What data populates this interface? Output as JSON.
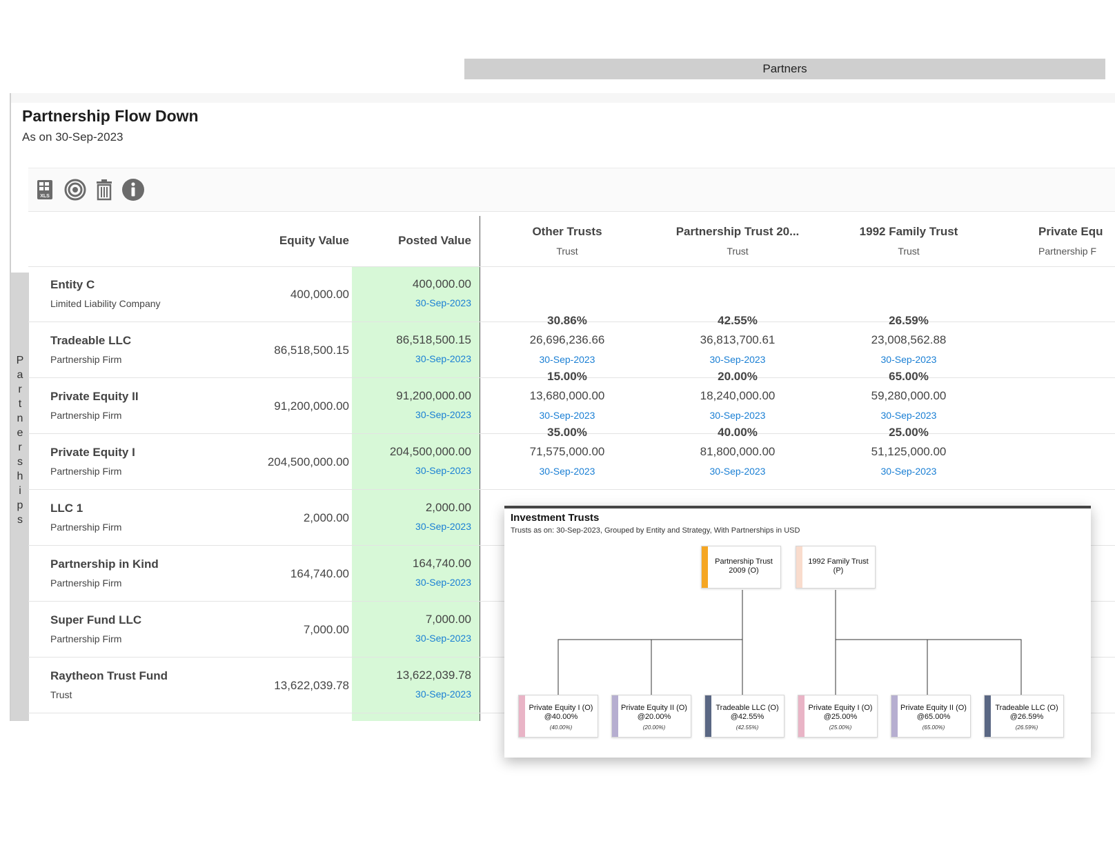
{
  "page": {
    "title": "Partnership Flow Down",
    "subtitle": "As on 30-Sep-2023",
    "partners_band": "Partners",
    "side_label": "Partnerships"
  },
  "toolbar": {
    "icons": [
      "excel-export-icon",
      "target-icon",
      "trash-icon",
      "info-icon"
    ]
  },
  "columns": {
    "equity": "Equity Value",
    "posted": "Posted Value"
  },
  "partners": [
    {
      "name": "Other Trusts",
      "type": "Trust"
    },
    {
      "name": "Partnership Trust 20...",
      "type": "Trust"
    },
    {
      "name": "1992 Family Trust",
      "type": "Trust"
    },
    {
      "name": "Private Equ",
      "type": "Partnership F"
    }
  ],
  "rows": [
    {
      "name": "Entity C",
      "type": "Limited Liability Company",
      "equity": "400,000.00",
      "posted": "400,000.00",
      "posted_date": "30-Sep-2023",
      "allocations": []
    },
    {
      "name": "Tradeable LLC",
      "type": "Partnership Firm",
      "equity": "86,518,500.15",
      "posted": "86,518,500.15",
      "posted_date": "30-Sep-2023",
      "allocations": [
        {
          "pct": "30.86%",
          "amount": "26,696,236.66",
          "date": "30-Sep-2023"
        },
        {
          "pct": "42.55%",
          "amount": "36,813,700.61",
          "date": "30-Sep-2023"
        },
        {
          "pct": "26.59%",
          "amount": "23,008,562.88",
          "date": "30-Sep-2023"
        }
      ]
    },
    {
      "name": "Private Equity II",
      "type": "Partnership Firm",
      "equity": "91,200,000.00",
      "posted": "91,200,000.00",
      "posted_date": "30-Sep-2023",
      "allocations": [
        {
          "pct": "15.00%",
          "amount": "13,680,000.00",
          "date": "30-Sep-2023"
        },
        {
          "pct": "20.00%",
          "amount": "18,240,000.00",
          "date": "30-Sep-2023"
        },
        {
          "pct": "65.00%",
          "amount": "59,280,000.00",
          "date": "30-Sep-2023"
        }
      ]
    },
    {
      "name": "Private Equity I",
      "type": "Partnership Firm",
      "equity": "204,500,000.00",
      "posted": "204,500,000.00",
      "posted_date": "30-Sep-2023",
      "allocations": [
        {
          "pct": "35.00%",
          "amount": "71,575,000.00",
          "date": "30-Sep-2023"
        },
        {
          "pct": "40.00%",
          "amount": "81,800,000.00",
          "date": "30-Sep-2023"
        },
        {
          "pct": "25.00%",
          "amount": "51,125,000.00",
          "date": "30-Sep-2023"
        }
      ]
    },
    {
      "name": "LLC 1",
      "type": "Partnership Firm",
      "equity": "2,000.00",
      "posted": "2,000.00",
      "posted_date": "30-Sep-2023",
      "allocations": []
    },
    {
      "name": "Partnership in Kind",
      "type": "Partnership Firm",
      "equity": "164,740.00",
      "posted": "164,740.00",
      "posted_date": "30-Sep-2023",
      "allocations": []
    },
    {
      "name": "Super Fund LLC",
      "type": "Partnership Firm",
      "equity": "7,000.00",
      "posted": "7,000.00",
      "posted_date": "30-Sep-2023",
      "allocations": []
    },
    {
      "name": "Raytheon Trust Fund",
      "type": "Trust",
      "equity": "13,622,039.78",
      "posted": "13,622,039.78",
      "posted_date": "30-Sep-2023",
      "allocations": []
    }
  ],
  "orgchart": {
    "title": "Investment Trusts",
    "subtitle": "Trusts as on: 30-Sep-2023, Grouped by Entity and Strategy, With Partnerships in USD",
    "parents": [
      {
        "label": "Partnership Trust 2009 (O)",
        "color": "#f5a623"
      },
      {
        "label": "1992 Family Trust (P)",
        "color": "#f9dccd"
      }
    ],
    "children": [
      {
        "label": "Private Equity I (O)",
        "share": "@40.00%",
        "note": "(40.00%)",
        "color": "#e9b4c6"
      },
      {
        "label": "Private Equity II (O)",
        "share": "@20.00%",
        "note": "(20.00%)",
        "color": "#b6aed0"
      },
      {
        "label": "Tradeable LLC (O)",
        "share": "@42.55%",
        "note": "(42.55%)",
        "color": "#5a6783"
      },
      {
        "label": "Private Equity I (O)",
        "share": "@25.00%",
        "note": "(25.00%)",
        "color": "#e9b4c6"
      },
      {
        "label": "Private Equity II (O)",
        "share": "@65.00%",
        "note": "(65.00%)",
        "color": "#b6aed0"
      },
      {
        "label": "Tradeable LLC (O)",
        "share": "@26.59%",
        "note": "(26.59%)",
        "color": "#5a6783"
      }
    ]
  },
  "colors": {
    "posted_bg": "#d7f8d7",
    "link": "#1a7fd4",
    "partners_band": "#cfcfcf"
  }
}
